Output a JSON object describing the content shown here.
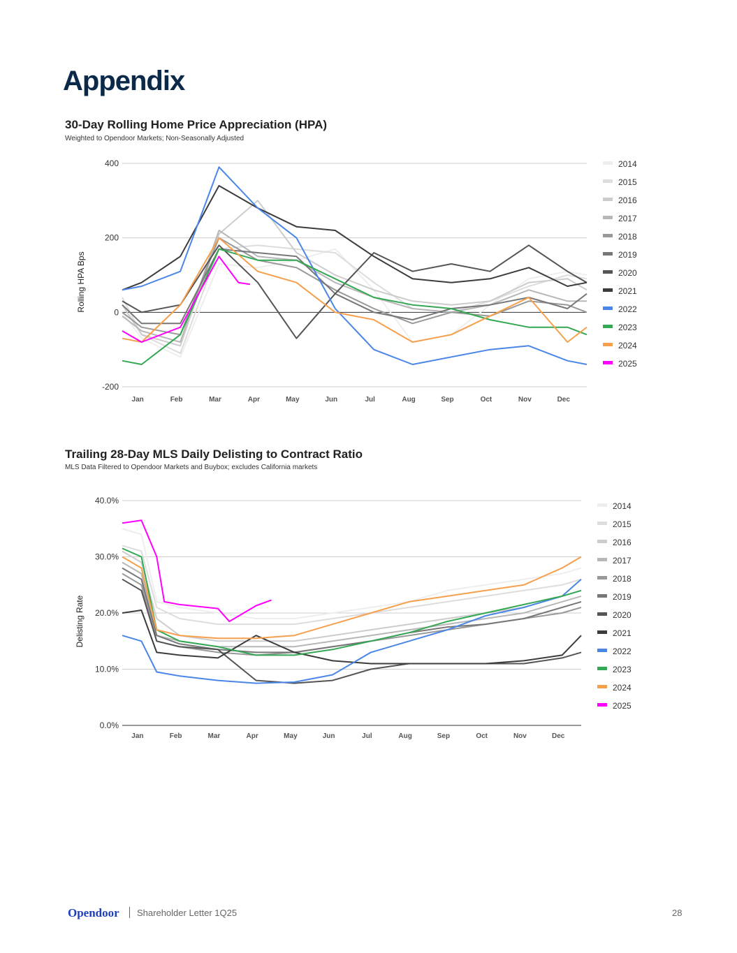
{
  "page": {
    "title": "Appendix",
    "footer_brand": "Opendoor",
    "footer_doc": "Shareholder Letter 1Q25",
    "page_number": "28"
  },
  "colors": {
    "2014": "#eeeeee",
    "2015": "#dddddd",
    "2016": "#cccccc",
    "2017": "#b7b7b7",
    "2018": "#999999",
    "2019": "#777777",
    "2020": "#555555",
    "2021": "#3c3c3c",
    "2022": "#4a86e8",
    "2023": "#34a853",
    "2024": "#f6a04d",
    "2025": "#ff00ff"
  },
  "chart_data": [
    {
      "type": "line",
      "title": "30-Day Rolling Home Price Appreciation (HPA)",
      "subtitle": "Weighted to Opendoor Markets; Non-Seasonally Adjusted",
      "xlabel": "",
      "ylabel": "Rolling HPA Bps",
      "ylim": [
        -200,
        400
      ],
      "yticks": [
        400,
        200,
        0,
        -200
      ],
      "ytick_labels": [
        "400",
        "200",
        "0",
        "-200"
      ],
      "xlim": [
        0,
        12
      ],
      "categories": [
        "Jan",
        "Feb",
        "Mar",
        "Apr",
        "May",
        "Jun",
        "Jul",
        "Aug",
        "Sep",
        "Oct",
        "Nov",
        "Dec"
      ],
      "grid": true,
      "legend": "right",
      "x": [
        0,
        0.5,
        1.5,
        2.5,
        3.5,
        4.5,
        5.5,
        6.5,
        7.5,
        8.5,
        9.5,
        10.5,
        11.5,
        12
      ],
      "series": [
        {
          "name": "2014",
          "values": [
            0,
            -70,
            -120,
            130,
            120,
            140,
            170,
            60,
            -80,
            -60,
            20,
            90,
            110,
            100
          ]
        },
        {
          "name": "2015",
          "values": [
            40,
            -60,
            -110,
            170,
            180,
            170,
            160,
            80,
            10,
            0,
            30,
            70,
            100,
            90
          ]
        },
        {
          "name": "2016",
          "values": [
            20,
            -60,
            -90,
            210,
            300,
            160,
            100,
            60,
            30,
            20,
            30,
            80,
            90,
            60
          ]
        },
        {
          "name": "2017",
          "values": [
            -10,
            -50,
            -80,
            220,
            150,
            140,
            80,
            40,
            10,
            0,
            20,
            60,
            30,
            30
          ]
        },
        {
          "name": "2018",
          "values": [
            0,
            -40,
            -60,
            200,
            140,
            120,
            60,
            10,
            -30,
            0,
            -10,
            30,
            20,
            0
          ]
        },
        {
          "name": "2019",
          "values": [
            20,
            -30,
            -30,
            170,
            160,
            150,
            50,
            0,
            -20,
            10,
            20,
            40,
            10,
            50
          ]
        },
        {
          "name": "2020",
          "values": [
            30,
            0,
            20,
            180,
            80,
            -70,
            50,
            160,
            110,
            130,
            110,
            180,
            110,
            80
          ]
        },
        {
          "name": "2021",
          "values": [
            60,
            80,
            150,
            340,
            280,
            230,
            220,
            150,
            90,
            80,
            90,
            120,
            70,
            80
          ]
        },
        {
          "name": "2022",
          "values": [
            60,
            70,
            110,
            390,
            280,
            200,
            10,
            -100,
            -140,
            -120,
            -100,
            -90,
            -130,
            -140
          ]
        },
        {
          "name": "2023",
          "values": [
            -130,
            -140,
            -60,
            170,
            140,
            140,
            90,
            40,
            20,
            10,
            -20,
            -40,
            -40,
            -60
          ]
        },
        {
          "name": "2024",
          "values": [
            -70,
            -80,
            20,
            200,
            110,
            80,
            0,
            -20,
            -80,
            -60,
            -10,
            40,
            -80,
            -40
          ]
        },
        {
          "name": "2025",
          "x": [
            0,
            0.5,
            1.5,
            2.5,
            3.0,
            3.3
          ],
          "values": [
            -50,
            -80,
            -40,
            150,
            80,
            75
          ]
        }
      ]
    },
    {
      "type": "line",
      "title": "Trailing 28-Day MLS Daily Delisting to Contract Ratio",
      "subtitle": "MLS Data Filtered to Opendoor Markets and Buybox; excludes California markets",
      "xlabel": "",
      "ylabel": "Delisting Rate",
      "ylim": [
        0,
        40
      ],
      "yticks": [
        40,
        30,
        20,
        10,
        0
      ],
      "ytick_labels": [
        "40.0%",
        "30.0%",
        "20.0%",
        "10.0%",
        "0.0%"
      ],
      "xlim": [
        0,
        12
      ],
      "categories": [
        "Jan",
        "Feb",
        "Mar",
        "Apr",
        "May",
        "Jun",
        "Jul",
        "Aug",
        "Sep",
        "Oct",
        "Nov",
        "Dec"
      ],
      "grid": true,
      "legend": "right",
      "x": [
        0,
        0.5,
        0.9,
        1.5,
        2.5,
        3.5,
        4.5,
        5.5,
        6.5,
        7.5,
        8.5,
        9.5,
        10.5,
        11.5,
        12
      ],
      "series": [
        {
          "name": "2014",
          "values": [
            35,
            34,
            22,
            21,
            20,
            19,
            19,
            20,
            21,
            22,
            24,
            25,
            26,
            27,
            28
          ]
        },
        {
          "name": "2015",
          "values": [
            32,
            31,
            21,
            19,
            18,
            18,
            18,
            19,
            20,
            21,
            22,
            23,
            24,
            25,
            26
          ]
        },
        {
          "name": "2016",
          "values": [
            31,
            29,
            19,
            16,
            15,
            15,
            15,
            16,
            17,
            18,
            19,
            20,
            21,
            23,
            24
          ]
        },
        {
          "name": "2017",
          "values": [
            29,
            27,
            16,
            15,
            14,
            14,
            14,
            15,
            16,
            17,
            18,
            19,
            20,
            22,
            23
          ]
        },
        {
          "name": "2018",
          "values": [
            27,
            25,
            15,
            14,
            13,
            12.5,
            13,
            14,
            15,
            16,
            17,
            18,
            19,
            20,
            21
          ]
        },
        {
          "name": "2019",
          "values": [
            28,
            26,
            16,
            14.5,
            13.5,
            13,
            13,
            14,
            15,
            16.5,
            17.5,
            18,
            19,
            21,
            22
          ]
        },
        {
          "name": "2020",
          "values": [
            26,
            24,
            15,
            14,
            13.5,
            8,
            7.5,
            8,
            10,
            11,
            11,
            11,
            11,
            12,
            13
          ]
        },
        {
          "name": "2021",
          "values": [
            20,
            20.5,
            13,
            12.5,
            12,
            16,
            13,
            11.5,
            11,
            11,
            11,
            11,
            11.5,
            12.5,
            16
          ]
        },
        {
          "name": "2022",
          "values": [
            16,
            15,
            9.5,
            8.8,
            8,
            7.5,
            7.7,
            9,
            13,
            15,
            17,
            19.5,
            21,
            23,
            26
          ]
        },
        {
          "name": "2023",
          "values": [
            31.5,
            30,
            17,
            15,
            14,
            12.5,
            12.5,
            13.5,
            15,
            16.5,
            18.5,
            20,
            21.5,
            23,
            24
          ]
        },
        {
          "name": "2024",
          "values": [
            30,
            28,
            17,
            16,
            15.5,
            15.5,
            16,
            18,
            20,
            22,
            23,
            24,
            25,
            28,
            30
          ]
        },
        {
          "name": "2025",
          "x": [
            0,
            0.5,
            0.9,
            1.1,
            1.5,
            2.5,
            2.8,
            3.5,
            3.9
          ],
          "values": [
            36,
            36.5,
            30,
            22,
            21.5,
            20.8,
            18.5,
            21.3,
            22.3
          ]
        }
      ]
    }
  ]
}
